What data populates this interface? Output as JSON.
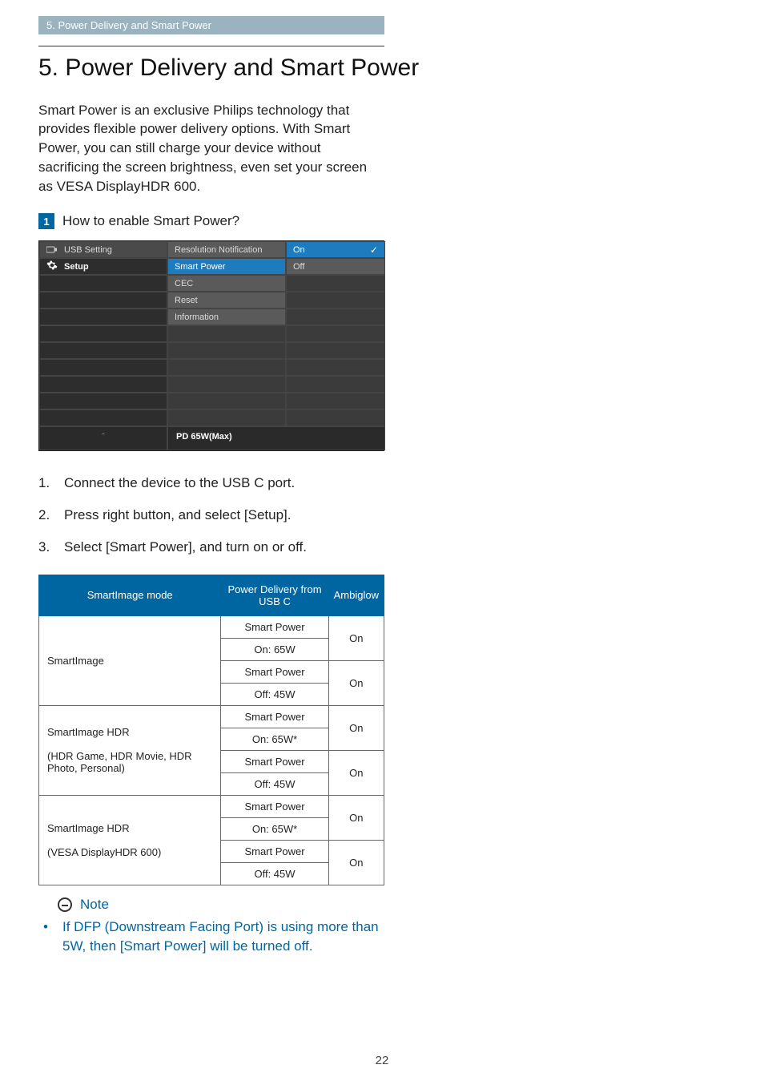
{
  "breadcrumb": "5. Power Delivery and Smart Power",
  "title": "5.  Power Delivery and Smart Power",
  "intro": "Smart Power is an exclusive Philips technology that provides flexible power delivery options. With Smart Power, you can still charge your device without sacrificing the screen brightness, even set your screen as VESA DisplayHDR 600.",
  "step_header": {
    "num": "1",
    "text": "How to enable Smart Power?"
  },
  "osd": {
    "side": [
      {
        "icon": "usb",
        "label": "USB Setting"
      },
      {
        "icon": "gear",
        "label": "Setup"
      }
    ],
    "mid": [
      "Resolution Notification",
      "Smart Power",
      "CEC",
      "Reset",
      "Information",
      "",
      "",
      "",
      "",
      "",
      ""
    ],
    "right": [
      "On",
      "Off",
      "",
      "",
      "",
      "",
      "",
      "",
      "",
      "",
      ""
    ],
    "mid_highlight_index": 1,
    "right_highlight_index": 0,
    "footer_caret": "＾",
    "footer_text": "PD 65W(Max)"
  },
  "steps": [
    "Connect the device to the USB C port.",
    "Press right button, and select [Setup].",
    "Select [Smart Power], and turn on or off."
  ],
  "table": {
    "headers": [
      "SmartImage mode",
      "Power Delivery from USB C",
      "Ambiglow"
    ],
    "groups": [
      {
        "mode": "SmartImage",
        "rows": [
          {
            "pd1": "Smart Power",
            "pd2": "On: 65W",
            "amb": "On"
          },
          {
            "pd1": "Smart Power",
            "pd2": "Off: 45W",
            "amb": "On"
          }
        ]
      },
      {
        "mode": "SmartImage HDR\n\n(HDR Game, HDR Movie, HDR Photo, Personal)",
        "rows": [
          {
            "pd1": "Smart Power",
            "pd2": "On: 65W*",
            "amb": "On"
          },
          {
            "pd1": "Smart Power",
            "pd2": "Off: 45W",
            "amb": "On"
          }
        ]
      },
      {
        "mode": "SmartImage HDR\n\n(VESA DisplayHDR 600)",
        "rows": [
          {
            "pd1": "Smart Power",
            "pd2": "On: 65W*",
            "amb": "On"
          },
          {
            "pd1": "Smart Power",
            "pd2": "Off: 45W",
            "amb": "On"
          }
        ]
      }
    ]
  },
  "note": {
    "heading": "Note",
    "items": [
      "If DFP (Downstream Facing Port) is using more than 5W, then [Smart Power] will be turned off."
    ]
  },
  "page_number": "22",
  "colors": {
    "accent": "#0066a1",
    "breadcrumb_bg": "#9bb3be",
    "osd_bg": "#3b3b3b",
    "osd_hi": "#1e7bbd"
  }
}
